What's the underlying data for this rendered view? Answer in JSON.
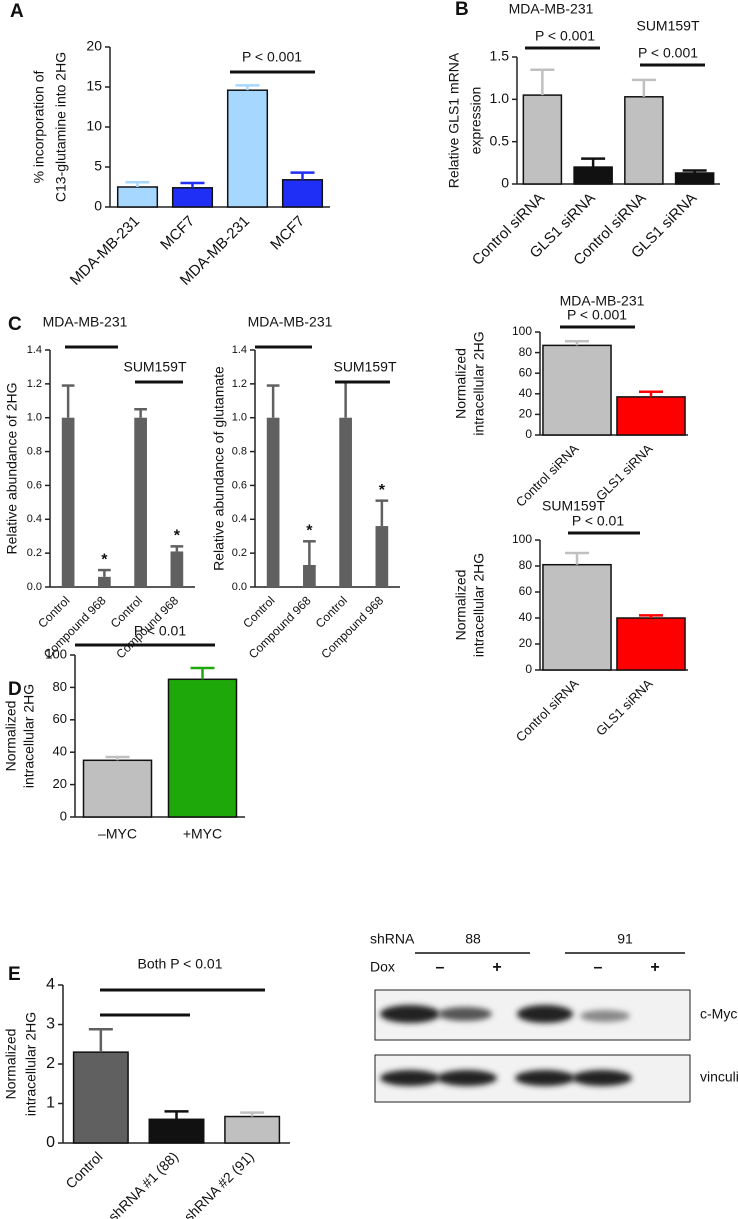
{
  "chart_data": [
    {
      "panel": "A",
      "type": "bar",
      "ylabel": [
        "% incorporation of",
        "C13-glutamine into 2HG"
      ],
      "categories": [
        "MDA-MB-231",
        "MCF7",
        "MDA-MB-231",
        "MCF7"
      ],
      "values": [
        2.5,
        2.4,
        14.6,
        3.4
      ],
      "errors": [
        0.6,
        0.6,
        0.6,
        0.9
      ],
      "colors": [
        "#a6d8ff",
        "#1f2ff5",
        "#a6d8ff",
        "#1f2ff5"
      ],
      "ylim": [
        0,
        20
      ],
      "yticks": [
        0,
        5,
        10,
        15,
        20
      ],
      "annotations": [
        "P < 0.001"
      ]
    },
    {
      "panel": "B",
      "type": "bar",
      "ylabel": [
        "Relative GLS1 mRNA",
        "expression"
      ],
      "groups": [
        "MDA-MB-231",
        "SUM159T"
      ],
      "categories": [
        "Control siRNA",
        "GLS1 siRNA",
        "Control siRNA",
        "GLS1 siRNA"
      ],
      "values": [
        1.05,
        0.2,
        1.03,
        0.13
      ],
      "errors": [
        0.3,
        0.1,
        0.2,
        0.03
      ],
      "colors": [
        "#c0c0c0",
        "#111111",
        "#c0c0c0",
        "#111111"
      ],
      "ylim": [
        0,
        1.5
      ],
      "yticks": [
        0,
        0.5,
        {
          "value": 1,
          "label": "1.0"
        },
        1.5
      ],
      "annotations": [
        "P < 0.001",
        "P < 0.001"
      ]
    },
    {
      "panel": "C",
      "type": "bar",
      "ylabel": [
        "Relative abundance of 2HG"
      ],
      "groups": [
        "MDA-MB-231",
        "SUM159T"
      ],
      "categories": [
        "Control",
        "Compound 968",
        "Control",
        "Compound 968"
      ],
      "values": [
        1.0,
        0.06,
        1.0,
        0.21
      ],
      "errors": [
        0.19,
        0.04,
        0.05,
        0.03
      ],
      "colors": [
        "#606060",
        "#606060",
        "#606060",
        "#606060"
      ],
      "ylim": [
        0,
        1.4
      ],
      "yticks": [
        {
          "value": 0,
          "label": "0.0"
        },
        0.2,
        0.4,
        0.6,
        0.8,
        {
          "value": 1,
          "label": "1.0"
        },
        1.2,
        1.4
      ],
      "annotations": [
        "*",
        "*"
      ]
    },
    {
      "type": "bar",
      "ylabel": [
        "Relative abundance of glutamate"
      ],
      "groups": [
        "MDA-MB-231",
        "SUM159T"
      ],
      "categories": [
        "Control",
        "Compound 968",
        "Control",
        "Compound 968"
      ],
      "values": [
        1.0,
        0.13,
        1.0,
        0.36
      ],
      "errors": [
        0.19,
        0.14,
        0.21,
        0.15
      ],
      "colors": [
        "#606060",
        "#606060",
        "#606060",
        "#606060"
      ],
      "ylim": [
        0,
        1.4
      ],
      "yticks": [
        {
          "value": 0,
          "label": "0.0"
        },
        0.2,
        0.4,
        0.6,
        0.8,
        {
          "value": 1,
          "label": "1.0"
        },
        1.2,
        1.4
      ],
      "annotations": [
        "*",
        "*"
      ]
    },
    {
      "type": "bar",
      "title": "MDA-MB-231",
      "ylabel": [
        "Normalized",
        "intracellular 2HG"
      ],
      "categories": [
        "Control siRNA",
        "GLS1 siRNA"
      ],
      "values": [
        87,
        37
      ],
      "errors": [
        4,
        5
      ],
      "colors": [
        "#c0c0c0",
        "#ff0000"
      ],
      "ylim": [
        0,
        100
      ],
      "yticks": [
        0,
        20,
        40,
        60,
        80,
        100
      ],
      "annotations": [
        "P < 0.001"
      ]
    },
    {
      "type": "bar",
      "title": "SUM159T",
      "ylabel": [
        "Normalized",
        "intracellular 2HG"
      ],
      "categories": [
        "Control siRNA",
        "GLS1 siRNA"
      ],
      "values": [
        81,
        40
      ],
      "errors": [
        9,
        2
      ],
      "colors": [
        "#c0c0c0",
        "#ff0000"
      ],
      "ylim": [
        0,
        100
      ],
      "yticks": [
        0,
        20,
        40,
        60,
        80,
        100
      ],
      "annotations": [
        "P < 0.01"
      ]
    },
    {
      "panel": "D",
      "type": "bar",
      "ylabel": [
        "Normalized",
        "intracellular 2HG"
      ],
      "categories": [
        "–MYC",
        "+MYC"
      ],
      "values": [
        35,
        85
      ],
      "errors": [
        2,
        7
      ],
      "colors": [
        "#bfbfbf",
        "#1fa80a"
      ],
      "ylim": [
        0,
        100
      ],
      "yticks": [
        0,
        20,
        40,
        60,
        80,
        100
      ],
      "annotations": [
        "P < 0.01"
      ]
    },
    {
      "panel": "E",
      "type": "bar",
      "ylabel": [
        "Normalized",
        "intracellular 2HG"
      ],
      "categories": [
        "Control",
        "shRNA #1 (88)",
        "shRNA #2 (91)"
      ],
      "values": [
        2.3,
        0.6,
        0.67
      ],
      "errors": [
        0.58,
        0.2,
        0.1
      ],
      "colors": [
        "#606060",
        "#111111",
        "#c0c0c0"
      ],
      "ylim": [
        0,
        4
      ],
      "yticks": [
        0,
        1,
        2,
        3,
        4
      ],
      "annotations": [
        "Both P < 0.01"
      ]
    }
  ],
  "blot": {
    "shrna_label": "shRNA",
    "clones": [
      "88",
      "91"
    ],
    "dox_label": "Dox",
    "dox": [
      "–",
      "+",
      "–",
      "+"
    ],
    "bands": [
      "c-Myc",
      "vinculin"
    ]
  }
}
